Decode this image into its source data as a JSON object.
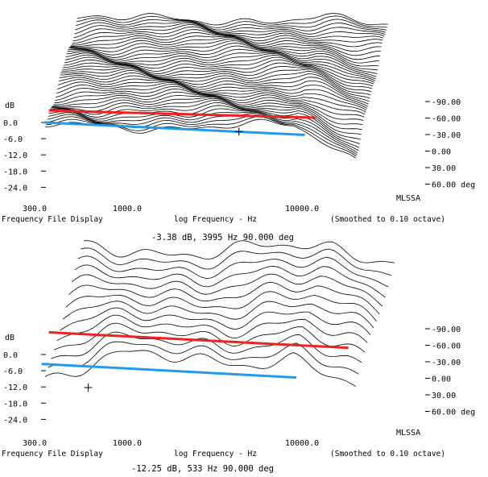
{
  "chart_data": [
    {
      "type": "waterfall",
      "x_scale": "log",
      "x_ticks": [
        "300.0",
        "1000.0",
        "10000.0"
      ],
      "x_tick_values": [
        300,
        1000,
        10000
      ],
      "y_unit": "dB",
      "y_ticks": [
        "0.0",
        "-6.0",
        "-12.0",
        "-18.0",
        "-24.0"
      ],
      "y_tick_values": [
        0,
        -6,
        -12,
        -18,
        -24
      ],
      "angle_ticks": [
        "-90.00",
        "-60.00",
        "-30.00",
        "0.00",
        "30.00",
        "60.00 deg"
      ],
      "brand": "MLSSA",
      "footer": {
        "left": "Frequency File Display",
        "center": "log Frequency - Hz",
        "right": "(Smoothed to 0.10 octave)"
      },
      "cursor_readout": "-3.38 dB, 3995 Hz  90.000 deg",
      "cursor": {
        "freq_hz": 3995,
        "db": -3.38
      },
      "slice_count": 46,
      "annotation_lines": [
        {
          "color": "#ee2222",
          "start": {
            "freq_hz": 320,
            "db": 4.4
          },
          "end": {
            "freq_hz": 11000,
            "db": 1.8
          }
        },
        {
          "color": "#2299ee",
          "start": {
            "freq_hz": 300,
            "db": 0.0
          },
          "end": {
            "freq_hz": 9500,
            "db": -4.6
          }
        }
      ]
    },
    {
      "type": "waterfall",
      "x_scale": "log",
      "x_ticks": [
        "300.0",
        "1000.0",
        "10000.0"
      ],
      "x_tick_values": [
        300,
        1000,
        10000
      ],
      "y_unit": "dB",
      "y_ticks": [
        "0.0",
        "-6.0",
        "-12.0",
        "-18.0",
        "-24.0"
      ],
      "y_tick_values": [
        0,
        -6,
        -12,
        -18,
        -24
      ],
      "angle_ticks": [
        "-90.00",
        "-60.00",
        "-30.00",
        "0.00",
        "30.00",
        "60.00 deg"
      ],
      "brand": "MLSSA",
      "footer": {
        "left": "Frequency File Display",
        "center": "log Frequency - Hz",
        "right": "(Smoothed to 0.10 octave)"
      },
      "cursor_readout": "-12.25 dB, 533 Hz  90.000 deg",
      "cursor": {
        "freq_hz": 533,
        "db": -12.25
      },
      "slice_count": 14,
      "annotation_lines": [
        {
          "color": "#ee2222",
          "start": {
            "freq_hz": 320,
            "db": 8.2
          },
          "end": {
            "freq_hz": 17000,
            "db": 2.5
          }
        },
        {
          "color": "#2299ee",
          "start": {
            "freq_hz": 290,
            "db": -3.5
          },
          "end": {
            "freq_hz": 8500,
            "db": -8.5
          }
        }
      ]
    }
  ]
}
